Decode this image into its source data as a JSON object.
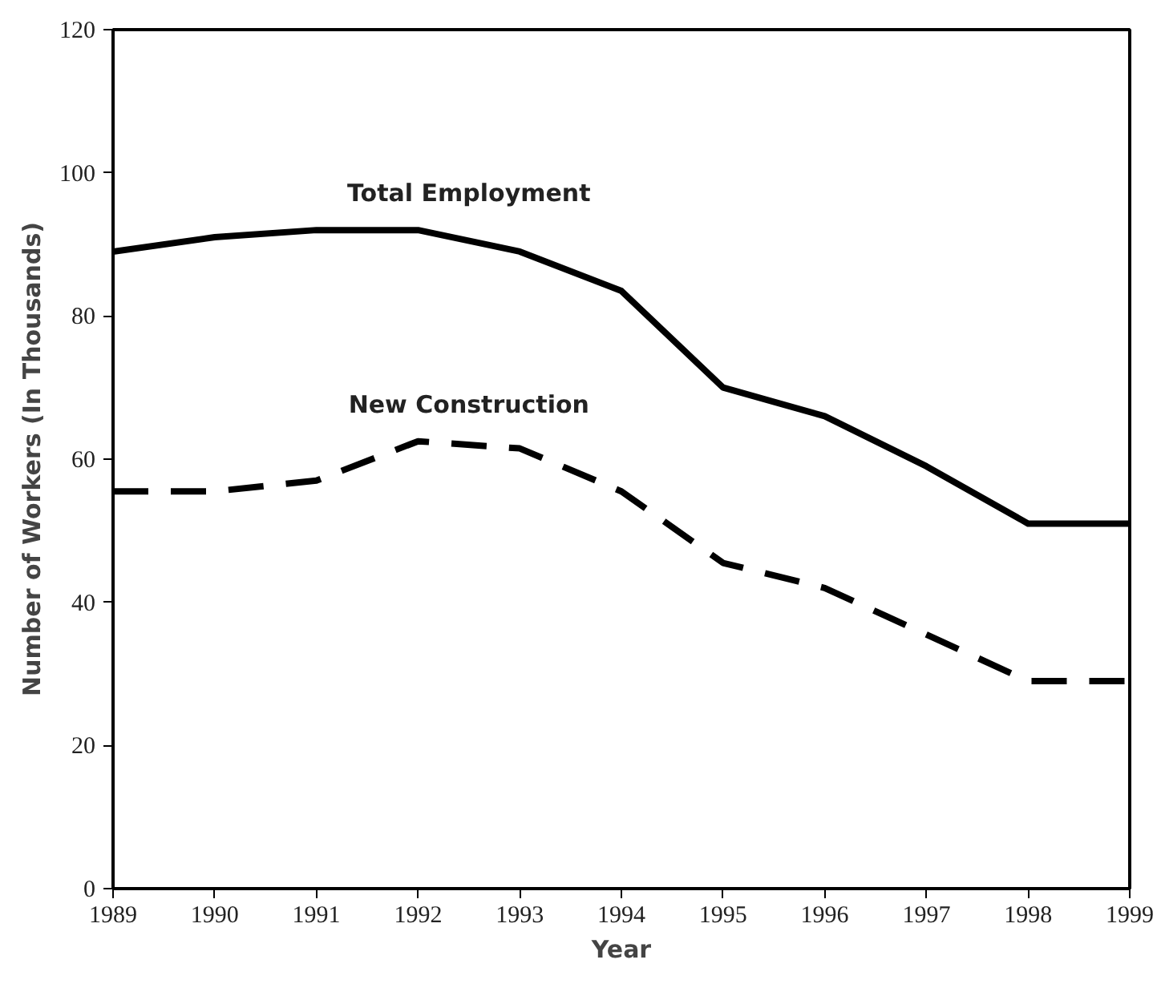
{
  "chart_data": {
    "type": "line",
    "xlabel": "Year",
    "ylabel": "Number of Workers (In Thousands)",
    "x": [
      1989,
      1990,
      1991,
      1992,
      1993,
      1994,
      1995,
      1996,
      1997,
      1998,
      1999
    ],
    "series": [
      {
        "name": "Total Employment",
        "color": "#000000",
        "line_style": "solid",
        "values": [
          89,
          91,
          92,
          92,
          89,
          83.5,
          70,
          66,
          59,
          51,
          51
        ]
      },
      {
        "name": "New Construction",
        "color": "#000000",
        "line_style": "dashed",
        "values": [
          55.5,
          55.5,
          57,
          62.5,
          61.5,
          55.5,
          45.5,
          42,
          35.5,
          29,
          29
        ]
      }
    ],
    "xlim": [
      1989,
      1999
    ],
    "xticks": [
      1989,
      1990,
      1991,
      1992,
      1993,
      1994,
      1995,
      1996,
      1997,
      1998,
      1999
    ],
    "ylim": [
      0,
      120
    ],
    "yticks": [
      0,
      20,
      40,
      60,
      80,
      100,
      120
    ],
    "grid": false,
    "marker": "none"
  }
}
